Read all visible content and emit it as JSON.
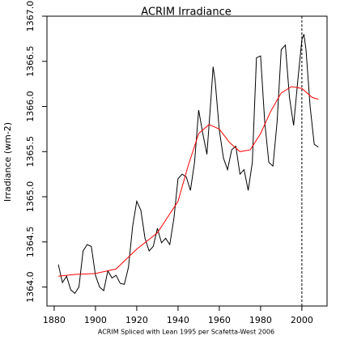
{
  "chart_data": {
    "type": "line",
    "title": "ACRIM Irradiance",
    "x_label": "ACRIM Spliced with Lean 1995 per Scafetta-West 2006",
    "y_label": "Irradiance (wm-2)",
    "xlim": [
      1876.5,
      2012.2
    ],
    "xticks": [
      1880,
      1900,
      1920,
      1940,
      1960,
      1980,
      2000
    ],
    "ylim": [
      1363.79,
      1367.0
    ],
    "yticks": [
      {
        "value": 1364.0,
        "label": "1364.0"
      },
      {
        "value": 1364.5,
        "label": "1364.5"
      },
      {
        "value": 1365.0,
        "label": "1365.0"
      },
      {
        "value": 1365.5,
        "label": "1365.5"
      },
      {
        "value": 1366.0,
        "label": "1366.0"
      },
      {
        "value": 1366.5,
        "label": "1366.5"
      },
      {
        "value": 1367.0,
        "label": "1367.0"
      }
    ],
    "vline": 2000,
    "series": [
      {
        "color": "#000000",
        "x": [
          1882,
          1884,
          1886,
          1888,
          1890,
          1892,
          1894,
          1896,
          1898,
          1900,
          1902,
          1904,
          1906,
          1908,
          1910,
          1912,
          1914,
          1916,
          1918,
          1920,
          1922,
          1924,
          1926,
          1928,
          1930,
          1932,
          1934,
          1936,
          1938,
          1940,
          1942,
          1944,
          1946,
          1948,
          1950,
          1952,
          1954,
          1956,
          1957,
          1958,
          1960,
          1962,
          1964,
          1966,
          1968,
          1970,
          1972,
          1974,
          1976,
          1978,
          1980,
          1982,
          1984,
          1986,
          1988,
          1990,
          1992,
          1994,
          1996,
          1998,
          2000,
          2001,
          2002,
          2004,
          2006,
          2008
        ],
        "values": [
          1364.25,
          1364.05,
          1364.12,
          1363.97,
          1363.93,
          1364.0,
          1364.4,
          1364.47,
          1364.45,
          1364.13,
          1364.0,
          1363.96,
          1364.18,
          1364.1,
          1364.13,
          1364.04,
          1364.03,
          1364.22,
          1364.67,
          1364.95,
          1364.85,
          1364.54,
          1364.4,
          1364.45,
          1364.65,
          1364.49,
          1364.54,
          1364.47,
          1364.76,
          1365.2,
          1365.25,
          1365.22,
          1365.07,
          1365.38,
          1365.96,
          1365.7,
          1365.47,
          1366.1,
          1366.44,
          1366.28,
          1365.74,
          1365.43,
          1365.3,
          1365.52,
          1365.56,
          1365.25,
          1365.3,
          1365.07,
          1365.38,
          1366.54,
          1366.56,
          1365.83,
          1365.38,
          1365.34,
          1365.83,
          1366.63,
          1366.68,
          1366.1,
          1365.79,
          1366.28,
          1366.74,
          1366.8,
          1366.63,
          1366.0,
          1365.58,
          1365.55
        ]
      },
      {
        "color": "#ff0000",
        "x": [
          1882,
          1890,
          1900,
          1910,
          1920,
          1930,
          1940,
          1945,
          1950,
          1955,
          1960,
          1965,
          1970,
          1975,
          1980,
          1985,
          1990,
          1995,
          2000,
          2005,
          2008
        ],
        "values": [
          1364.12,
          1364.14,
          1364.15,
          1364.2,
          1364.42,
          1364.6,
          1364.95,
          1365.35,
          1365.7,
          1365.8,
          1365.75,
          1365.6,
          1365.5,
          1365.52,
          1365.7,
          1365.95,
          1366.15,
          1366.22,
          1366.2,
          1366.1,
          1366.08
        ]
      }
    ]
  }
}
